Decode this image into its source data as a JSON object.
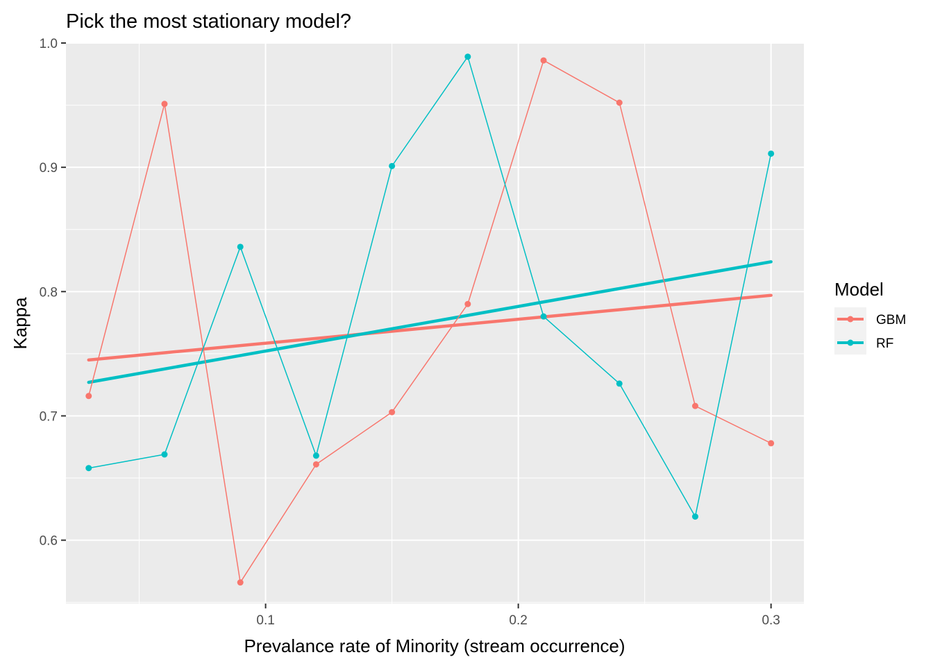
{
  "chart_data": {
    "type": "line",
    "title": "Pick the most stationary model?",
    "xlabel": "Prevalance rate of Minority (stream occurrence)",
    "ylabel": "Kappa",
    "xlim": [
      0.021,
      0.313
    ],
    "ylim": [
      0.549,
      1.0
    ],
    "x_ticks": [
      0.1,
      0.2,
      0.3
    ],
    "x_tick_labels": [
      "0.1",
      "0.2",
      "0.3"
    ],
    "y_ticks": [
      0.6,
      0.7,
      0.8,
      0.9,
      1.0
    ],
    "y_tick_labels": [
      "0.6",
      "0.7",
      "0.8",
      "0.9",
      "1.0"
    ],
    "grid": true,
    "legend": {
      "title": "Model",
      "position": "right"
    },
    "x": [
      0.03,
      0.06,
      0.09,
      0.12,
      0.15,
      0.18,
      0.21,
      0.24,
      0.27,
      0.3
    ],
    "series": [
      {
        "name": "GBM",
        "color": "#F8766D",
        "values": [
          0.716,
          0.951,
          0.566,
          0.661,
          0.703,
          0.79,
          0.986,
          0.952,
          0.708,
          0.678
        ],
        "trend": [
          0.745,
          0.797
        ]
      },
      {
        "name": "RF",
        "color": "#00BFC4",
        "values": [
          0.658,
          0.669,
          0.836,
          0.668,
          0.901,
          0.989,
          0.78,
          0.726,
          0.619,
          0.911
        ],
        "trend": [
          0.727,
          0.824
        ]
      }
    ]
  }
}
